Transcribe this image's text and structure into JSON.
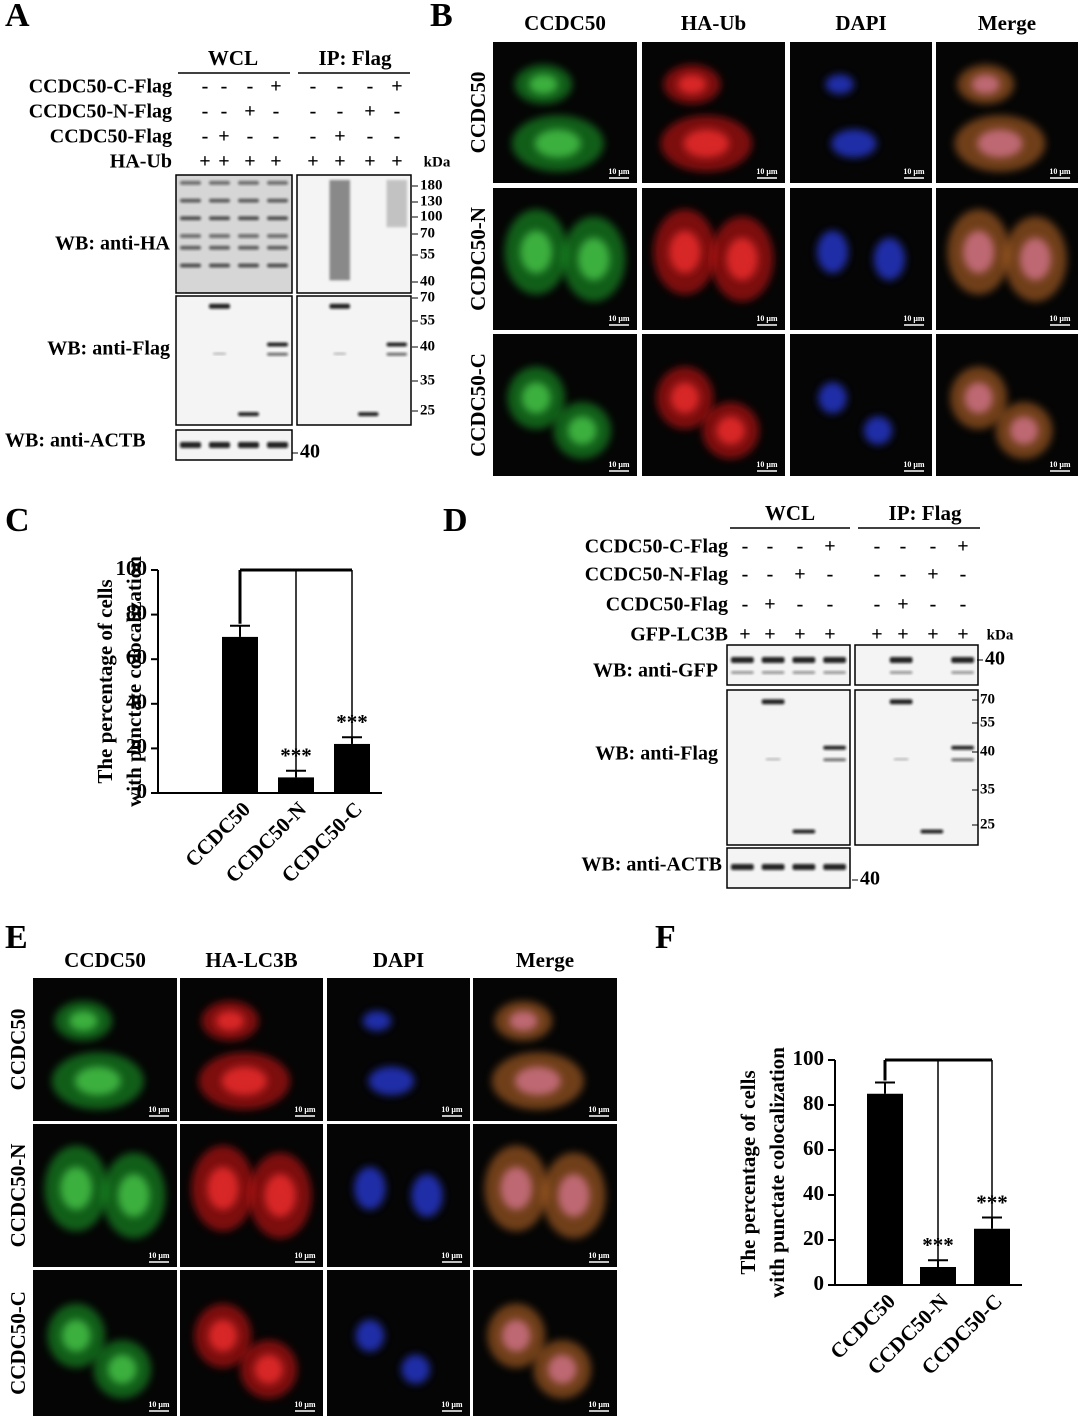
{
  "panels": {
    "A": {
      "letter": "A",
      "groups": [
        "WCL",
        "IP: Flag"
      ],
      "kda": "kDa",
      "rows": [
        {
          "label": "CCDC50-C-Flag",
          "signs": [
            "-",
            "-",
            "-",
            "+",
            "-",
            "-",
            "-",
            "+"
          ]
        },
        {
          "label": "CCDC50-N-Flag",
          "signs": [
            "-",
            "-",
            "+",
            "-",
            "-",
            "-",
            "+",
            "-"
          ]
        },
        {
          "label": "CCDC50-Flag",
          "signs": [
            "-",
            "+",
            "-",
            "-",
            "-",
            "+",
            "-",
            "-"
          ]
        },
        {
          "label": "HA-Ub",
          "signs": [
            "+",
            "+",
            "+",
            "+",
            "+",
            "+",
            "+",
            "+"
          ]
        }
      ],
      "blots": [
        {
          "label": "WB: anti-HA",
          "markers": [
            180,
            130,
            100,
            70,
            55,
            40
          ]
        },
        {
          "label": "WB: anti-Flag",
          "markers": [
            70,
            55,
            40,
            35,
            25
          ]
        },
        {
          "label": "WB: anti-ACTB",
          "markers": [
            40
          ]
        }
      ]
    },
    "B": {
      "letter": "B",
      "columns": [
        "CCDC50",
        "HA-Ub",
        "DAPI",
        "Merge"
      ],
      "rows": [
        "CCDC50",
        "CCDC50-N",
        "CCDC50-C"
      ],
      "scale_bar": "10 μm"
    },
    "D": {
      "letter": "D",
      "groups": [
        "WCL",
        "IP: Flag"
      ],
      "kda": "kDa",
      "rows": [
        {
          "label": "CCDC50-C-Flag",
          "signs": [
            "-",
            "-",
            "-",
            "+",
            "-",
            "-",
            "-",
            "+"
          ]
        },
        {
          "label": "CCDC50-N-Flag",
          "signs": [
            "-",
            "-",
            "+",
            "-",
            "-",
            "-",
            "+",
            "-"
          ]
        },
        {
          "label": "CCDC50-Flag",
          "signs": [
            "-",
            "+",
            "-",
            "-",
            "-",
            "+",
            "-",
            "-"
          ]
        },
        {
          "label": "GFP-LC3B",
          "signs": [
            "+",
            "+",
            "+",
            "+",
            "+",
            "+",
            "+",
            "+"
          ]
        }
      ],
      "blots": [
        {
          "label": "WB: anti-GFP",
          "markers": [
            40
          ]
        },
        {
          "label": "WB: anti-Flag",
          "markers": [
            70,
            55,
            40,
            35,
            25
          ]
        },
        {
          "label": "WB: anti-ACTB",
          "markers": [
            40
          ]
        }
      ]
    },
    "E": {
      "letter": "E",
      "columns": [
        "CCDC50",
        "HA-LC3B",
        "DAPI",
        "Merge"
      ],
      "rows": [
        "CCDC50",
        "CCDC50-N",
        "CCDC50-C"
      ],
      "scale_bar": "10 μm"
    }
  },
  "chart_data": [
    {
      "type": "bar",
      "label": "C",
      "y_label": [
        "The percentage of cells",
        "with punctate colocalization"
      ],
      "categories": [
        "CCDC50",
        "CCDC50-N",
        "CCDC50-C"
      ],
      "values": [
        70,
        7,
        22
      ],
      "errors": [
        5,
        3,
        3
      ],
      "significance": [
        null,
        "***",
        "***"
      ],
      "color": "#000000",
      "ylim": [
        0,
        100
      ],
      "yticks": [
        0,
        20,
        40,
        60,
        80,
        100
      ]
    },
    {
      "type": "bar",
      "label": "F",
      "y_label": [
        "The percentage of cells",
        "with punctate colocalization"
      ],
      "categories": [
        "CCDC50",
        "CCDC50-N",
        "CCDC50-C"
      ],
      "values": [
        85,
        8,
        25
      ],
      "errors": [
        5,
        3,
        5
      ],
      "significance": [
        null,
        "***",
        "***"
      ],
      "color": "#000000",
      "ylim": [
        0,
        100
      ],
      "yticks": [
        0,
        20,
        40,
        60,
        80,
        100
      ]
    }
  ]
}
